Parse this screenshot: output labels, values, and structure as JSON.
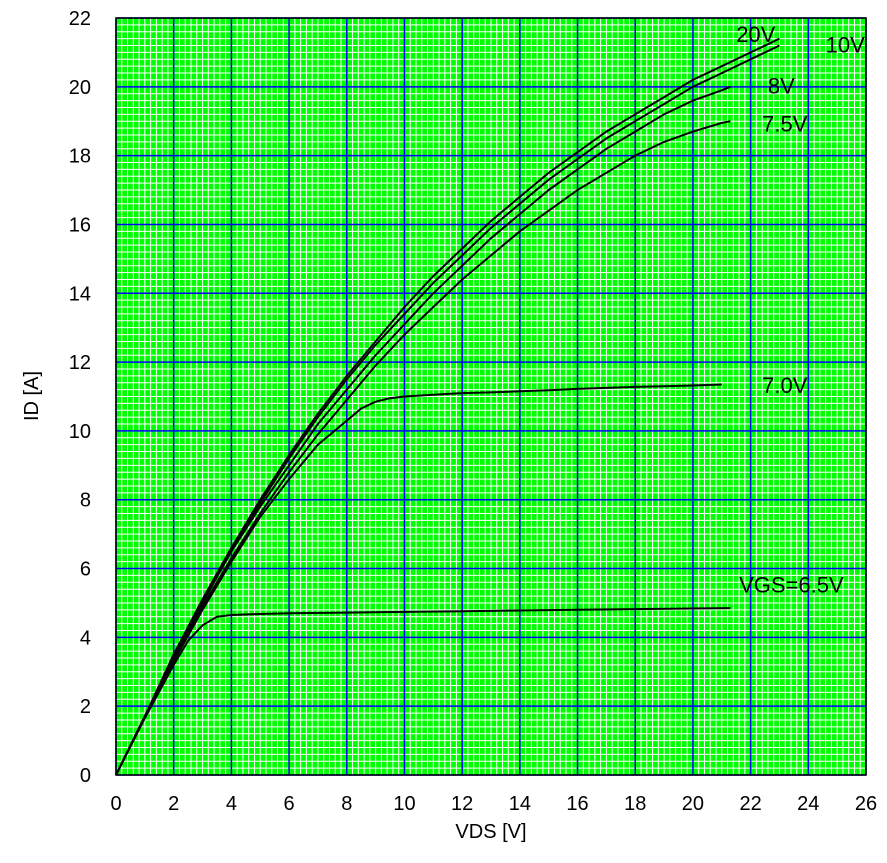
{
  "chart_data": {
    "type": "line",
    "title": "",
    "xlabel": "VDS [V]",
    "ylabel": "ID [A]",
    "xlim": [
      0,
      26
    ],
    "ylim": [
      0,
      22
    ],
    "x_ticks": [
      "0",
      "2",
      "4",
      "6",
      "8",
      "10",
      "12",
      "14",
      "16",
      "18",
      "20",
      "22",
      "24",
      "26"
    ],
    "y_ticks": [
      "0",
      "2",
      "4",
      "6",
      "8",
      "10",
      "12",
      "14",
      "16",
      "18",
      "20",
      "22"
    ],
    "grid": true,
    "colors": {
      "background": "#00ff00",
      "major_grid": "#0000ff",
      "minor_grid": "#ffffff",
      "line": "#000000",
      "frame": "#000000"
    },
    "series": [
      {
        "name": "20V",
        "x": [
          0,
          1,
          2,
          3,
          4,
          5,
          6,
          7,
          8,
          9,
          10,
          11,
          12,
          13,
          14,
          15,
          16,
          17,
          18,
          19,
          20,
          21,
          22,
          23
        ],
        "y": [
          0,
          1.7,
          3.5,
          5.1,
          6.6,
          8.0,
          9.3,
          10.5,
          11.6,
          12.6,
          13.6,
          14.5,
          15.3,
          16.1,
          16.8,
          17.5,
          18.1,
          18.7,
          19.2,
          19.7,
          20.2,
          20.6,
          21.0,
          21.4
        ],
        "label_x": 21.5,
        "label_y": 21.3
      },
      {
        "name": "10V",
        "x": [
          0,
          1,
          2,
          3,
          4,
          5,
          6,
          7,
          8,
          9,
          10,
          11,
          12,
          13,
          14,
          15,
          16,
          17,
          18,
          19,
          20,
          21,
          22,
          23
        ],
        "y": [
          0,
          1.7,
          3.5,
          5.1,
          6.6,
          7.9,
          9.2,
          10.4,
          11.5,
          12.5,
          13.4,
          14.3,
          15.1,
          15.9,
          16.6,
          17.3,
          17.9,
          18.5,
          19.0,
          19.5,
          20.0,
          20.4,
          20.8,
          21.2
        ],
        "label_x": 24.6,
        "label_y": 21.0
      },
      {
        "name": "8V",
        "x": [
          0,
          1,
          2,
          3,
          4,
          5,
          6,
          7,
          8,
          9,
          10,
          11,
          12,
          13,
          14,
          15,
          16,
          17,
          18,
          19,
          20,
          21,
          21.3
        ],
        "y": [
          0,
          1.7,
          3.4,
          5.0,
          6.5,
          7.8,
          9.0,
          10.2,
          11.2,
          12.2,
          13.1,
          14.0,
          14.8,
          15.6,
          16.3,
          17.0,
          17.6,
          18.2,
          18.7,
          19.2,
          19.6,
          19.9,
          20.0
        ],
        "label_x": 22.6,
        "label_y": 19.8
      },
      {
        "name": "7.5V",
        "x": [
          0,
          1,
          2,
          3,
          4,
          5,
          6,
          7,
          8,
          9,
          10,
          11,
          12,
          13,
          14,
          15,
          16,
          17,
          18,
          19,
          20,
          21,
          21.3
        ],
        "y": [
          0,
          1.7,
          3.4,
          4.9,
          6.3,
          7.6,
          8.8,
          9.9,
          10.9,
          11.9,
          12.8,
          13.6,
          14.4,
          15.1,
          15.8,
          16.4,
          17.0,
          17.5,
          18.0,
          18.4,
          18.7,
          18.95,
          19.0
        ],
        "label_x": 22.4,
        "label_y": 18.7
      },
      {
        "name": "7.0V",
        "x": [
          0,
          1,
          2,
          3,
          4,
          5,
          6,
          7,
          8,
          8.5,
          9,
          9.5,
          10,
          11,
          12,
          13,
          14,
          15,
          16,
          17,
          18,
          19,
          20,
          21
        ],
        "y": [
          0,
          1.7,
          3.3,
          4.8,
          6.2,
          7.5,
          8.6,
          9.6,
          10.3,
          10.65,
          10.85,
          10.95,
          11.0,
          11.05,
          11.1,
          11.12,
          11.15,
          11.18,
          11.22,
          11.25,
          11.28,
          11.3,
          11.32,
          11.35
        ],
        "label_x": 22.4,
        "label_y": 11.1
      },
      {
        "name": "VGS=6.5V",
        "x": [
          0,
          1,
          2,
          2.5,
          3,
          3.5,
          4,
          5,
          6,
          8,
          10,
          12,
          14,
          16,
          18,
          20,
          21.3
        ],
        "y": [
          0,
          1.65,
          3.2,
          3.9,
          4.35,
          4.6,
          4.65,
          4.68,
          4.7,
          4.72,
          4.74,
          4.76,
          4.78,
          4.8,
          4.82,
          4.84,
          4.85
        ],
        "label_x": 21.6,
        "label_y": 5.3
      }
    ]
  }
}
